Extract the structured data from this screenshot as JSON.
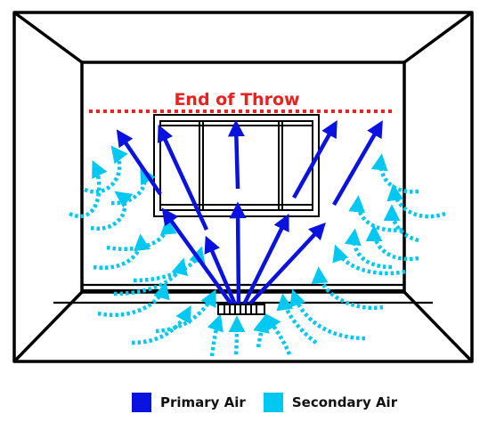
{
  "labels": {
    "end_of_throw": "End of Throw"
  },
  "legend": {
    "primary": {
      "label": "Primary Air",
      "color": "#0a12e0"
    },
    "secondary": {
      "label": "Secondary Air",
      "color": "#00c8f2"
    }
  },
  "colors": {
    "throw_line": "#ee1f1f",
    "outline": "#000000"
  }
}
